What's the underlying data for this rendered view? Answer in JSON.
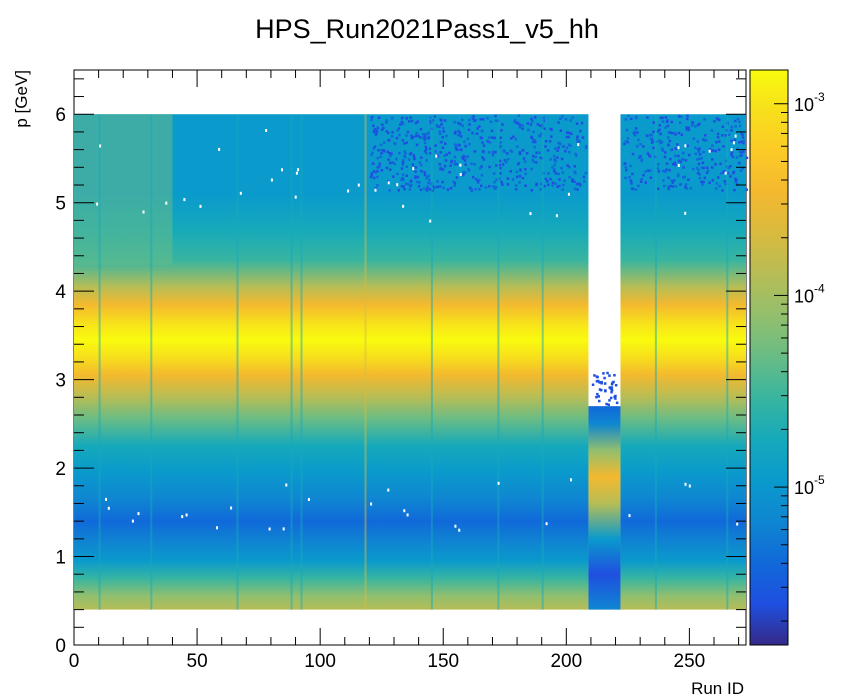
{
  "chart_data": {
    "type": "heatmap",
    "title": "HPS_Run2021Pass1_v5_hh",
    "xlabel": "Run ID",
    "ylabel": "p [GeV]",
    "xlim": [
      0,
      273
    ],
    "ylim": [
      0,
      6.5
    ],
    "x_ticks": [
      0,
      50,
      100,
      150,
      200,
      250
    ],
    "y_ticks": [
      0,
      1,
      2,
      3,
      4,
      5,
      6
    ],
    "z_scale": "log",
    "zlim": [
      1.5e-06,
      0.0015
    ],
    "z_ticks": [
      {
        "base": "10",
        "exp": "-5",
        "value": 1e-05
      },
      {
        "base": "10",
        "exp": "-4",
        "value": 0.0001
      },
      {
        "base": "10",
        "exp": "-3",
        "value": 0.001
      }
    ],
    "data_region": {
      "x_range": [
        0,
        273
      ],
      "p_range": [
        0.4,
        6.0
      ]
    },
    "gap_runs": [
      209,
      222
    ],
    "gap_region_p_max": 2.7,
    "peak_p_gev": 3.45,
    "secondary_peak_in_gap_p_gev": 1.9,
    "colormap": [
      "#352a87",
      "#1f4fe0",
      "#1069d9",
      "#0f86d1",
      "#0a9acc",
      "#15a9bb",
      "#38b5a0",
      "#67bc86",
      "#92bf6d",
      "#b6bd56",
      "#d8ba3f",
      "#f3b92f",
      "#fcca26",
      "#f7df1c",
      "#f9fb0e"
    ],
    "grid": false,
    "legend": "none"
  }
}
